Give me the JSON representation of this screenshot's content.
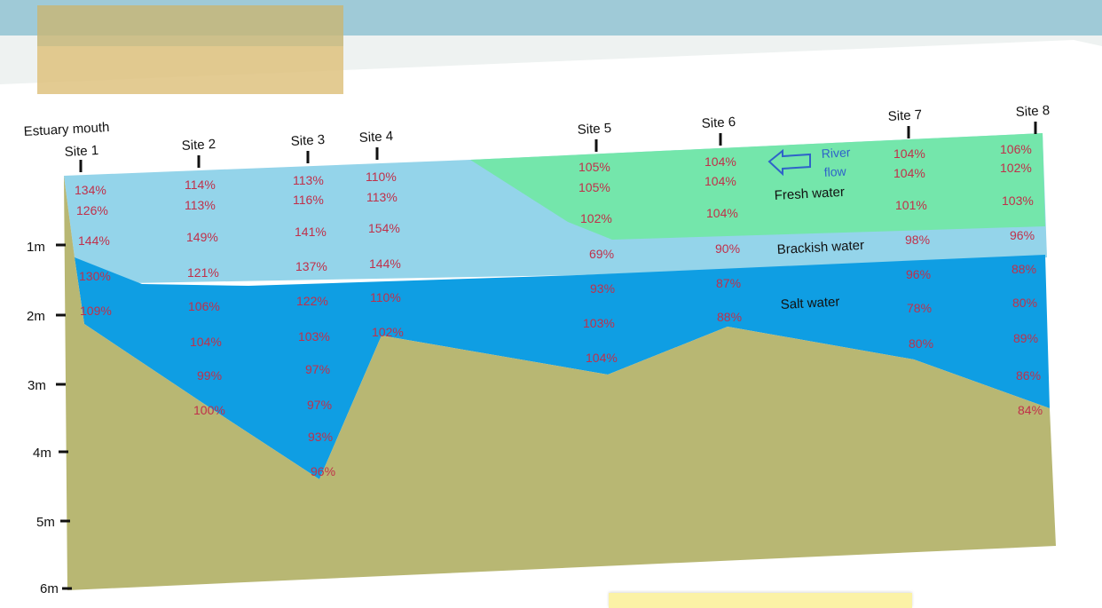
{
  "header": {
    "mouth_label": "Estuary mouth"
  },
  "sites": [
    "Site 1",
    "Site 2",
    "Site 3",
    "Site 4",
    "Site 5",
    "Site 6",
    "Site 7",
    "Site 8"
  ],
  "depths": [
    "1m",
    "2m",
    "3m",
    "4m",
    "5m",
    "6m"
  ],
  "zones": {
    "fresh": "Fresh water",
    "brackish": "Brackish water",
    "salt": "Salt water"
  },
  "river": {
    "line1": "River",
    "line2": "flow"
  },
  "colors": {
    "fresh": "#74e6ab",
    "brackish": "#94d4ea",
    "salt": "#0f9ee3",
    "sediment": "#b8b773",
    "percent": "#c0304a"
  },
  "readings": [
    [
      "134%",
      "126%",
      "144%",
      "130%",
      "109%"
    ],
    [
      "114%",
      "113%",
      "149%",
      "121%",
      "106%",
      "104%",
      "99%",
      "100%"
    ],
    [
      "113%",
      "116%",
      "141%",
      "137%",
      "122%",
      "103%",
      "97%",
      "97%",
      "93%",
      "96%"
    ],
    [
      "110%",
      "113%",
      "154%",
      "144%",
      "110%",
      "102%"
    ],
    [
      "105%",
      "105%",
      "102%",
      "69%",
      "93%",
      "103%",
      "104%"
    ],
    [
      "104%",
      "104%",
      "104%",
      "90%",
      "87%",
      "88%"
    ],
    [
      "104%",
      "104%",
      "101%",
      "98%",
      "96%",
      "78%",
      "80%"
    ],
    [
      "106%",
      "102%",
      "103%",
      "96%",
      "88%",
      "80%",
      "89%",
      "86%",
      "84%"
    ]
  ]
}
